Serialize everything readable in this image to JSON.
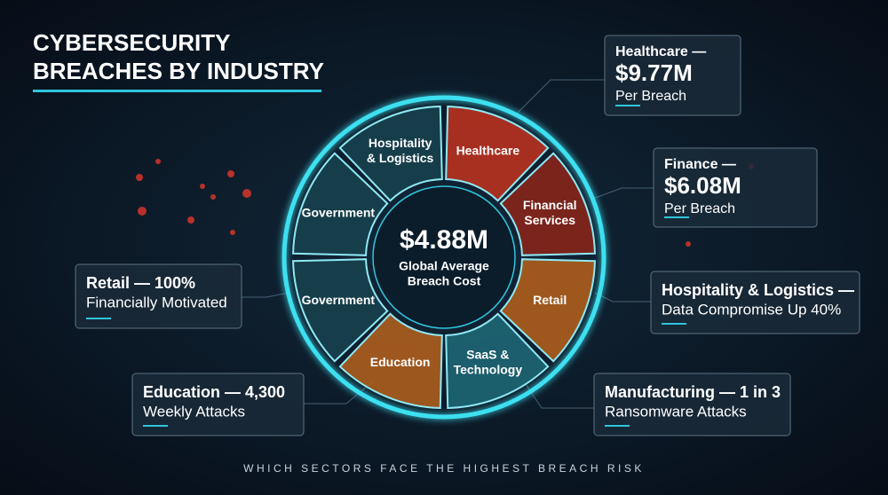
{
  "header": {
    "title_lines": [
      "CYBERSECURITY",
      "BREACHES BY INDUSTRY"
    ]
  },
  "ring": {
    "segments": [
      {
        "lines": [
          "Healthcare"
        ],
        "color": "#c2331f"
      },
      {
        "lines": [
          "Financial",
          "Services"
        ],
        "color": "#8e2419"
      },
      {
        "lines": [
          "Retail"
        ],
        "color": "#b7611a"
      },
      {
        "lines": [
          "SaaS &",
          "Technology"
        ],
        "color": "#1f6a78"
      },
      {
        "lines": [
          "Education"
        ],
        "color": "#b6611c"
      },
      {
        "lines": [
          "Government"
        ],
        "color": "#17434f"
      },
      {
        "lines": [
          "Government"
        ],
        "color": "#17434f"
      },
      {
        "lines": [
          "Hospitality",
          "& Logistics"
        ],
        "color": "#17434f"
      }
    ],
    "center_value": "$4.88M",
    "center_label_lines": [
      "Global Average",
      "Breach Cost"
    ]
  },
  "callouts": [
    {
      "lines": [
        "Healthcare —",
        "$9.77M",
        "Per Breach"
      ]
    },
    {
      "lines": [
        "Finance —",
        "$6.08M",
        "Per Breach"
      ]
    },
    {
      "lines": [
        "Hospitality & Logistics —",
        "Data Compromise Up 40%"
      ]
    },
    {
      "lines": [
        "Manufacturing — 1 in 3",
        "Ransomware Attacks"
      ]
    },
    {
      "lines": [
        "Retail — 100%",
        "Financially Motivated"
      ]
    },
    {
      "lines": [
        "Education — 4,300",
        "Weekly Attacks"
      ]
    }
  ],
  "footer": {
    "tagline": "WHICH SECTORS FACE THE HIGHEST BREACH RISK"
  }
}
